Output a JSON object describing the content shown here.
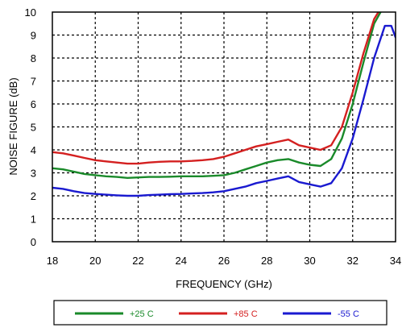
{
  "chart_data": {
    "type": "line",
    "title": "",
    "xlabel": "FREQUENCY (GHz)",
    "ylabel": "NOISE FIGURE (dB)",
    "xlim": [
      18,
      34
    ],
    "ylim": [
      0,
      10
    ],
    "xticks": [
      18,
      20,
      22,
      24,
      26,
      28,
      30,
      32,
      34
    ],
    "yticks": [
      0,
      1,
      2,
      3,
      4,
      5,
      6,
      7,
      8,
      9,
      10
    ],
    "grid": true,
    "legend_position": "bottom",
    "series": [
      {
        "name": "+25 C",
        "color": "#1a8a2a",
        "x": [
          18,
          18.5,
          19,
          19.5,
          20,
          20.5,
          21,
          21.5,
          22,
          22.5,
          23,
          23.5,
          24,
          24.5,
          25,
          25.5,
          26,
          26.5,
          27,
          27.5,
          28,
          28.5,
          29,
          29.5,
          30,
          30.5,
          31,
          31.5,
          32,
          32.5,
          33,
          33.3
        ],
        "y": [
          3.2,
          3.15,
          3.05,
          2.95,
          2.9,
          2.85,
          2.82,
          2.78,
          2.8,
          2.82,
          2.82,
          2.83,
          2.85,
          2.85,
          2.85,
          2.87,
          2.9,
          3.0,
          3.15,
          3.3,
          3.45,
          3.55,
          3.6,
          3.45,
          3.35,
          3.3,
          3.6,
          4.5,
          6.0,
          7.8,
          9.5,
          10.0
        ]
      },
      {
        "name": "+85 C",
        "color": "#d42020",
        "x": [
          18,
          18.5,
          19,
          19.5,
          20,
          20.5,
          21,
          21.5,
          22,
          22.5,
          23,
          23.5,
          24,
          24.5,
          25,
          25.5,
          26,
          26.5,
          27,
          27.5,
          28,
          28.5,
          29,
          29.5,
          30,
          30.5,
          31,
          31.5,
          32,
          32.5,
          33,
          33.2
        ],
        "y": [
          3.9,
          3.85,
          3.75,
          3.65,
          3.55,
          3.5,
          3.45,
          3.4,
          3.4,
          3.45,
          3.48,
          3.5,
          3.5,
          3.52,
          3.55,
          3.6,
          3.7,
          3.85,
          4.0,
          4.15,
          4.25,
          4.35,
          4.45,
          4.2,
          4.1,
          4.0,
          4.2,
          5.0,
          6.5,
          8.2,
          9.7,
          10.0
        ]
      },
      {
        "name": "-55 C",
        "color": "#1a1ad0",
        "x": [
          18,
          18.5,
          19,
          19.5,
          20,
          20.5,
          21,
          21.5,
          22,
          22.5,
          23,
          23.5,
          24,
          24.5,
          25,
          25.5,
          26,
          26.5,
          27,
          27.5,
          28,
          28.5,
          29,
          29.5,
          30,
          30.5,
          31,
          31.5,
          32,
          32.5,
          33,
          33.5,
          33.8,
          34
        ],
        "y": [
          2.35,
          2.3,
          2.2,
          2.12,
          2.08,
          2.05,
          2.02,
          2.0,
          2.0,
          2.03,
          2.05,
          2.07,
          2.08,
          2.1,
          2.12,
          2.15,
          2.2,
          2.3,
          2.4,
          2.55,
          2.65,
          2.75,
          2.85,
          2.6,
          2.5,
          2.4,
          2.55,
          3.2,
          4.5,
          6.2,
          8.0,
          9.4,
          9.4,
          8.9
        ]
      }
    ]
  }
}
